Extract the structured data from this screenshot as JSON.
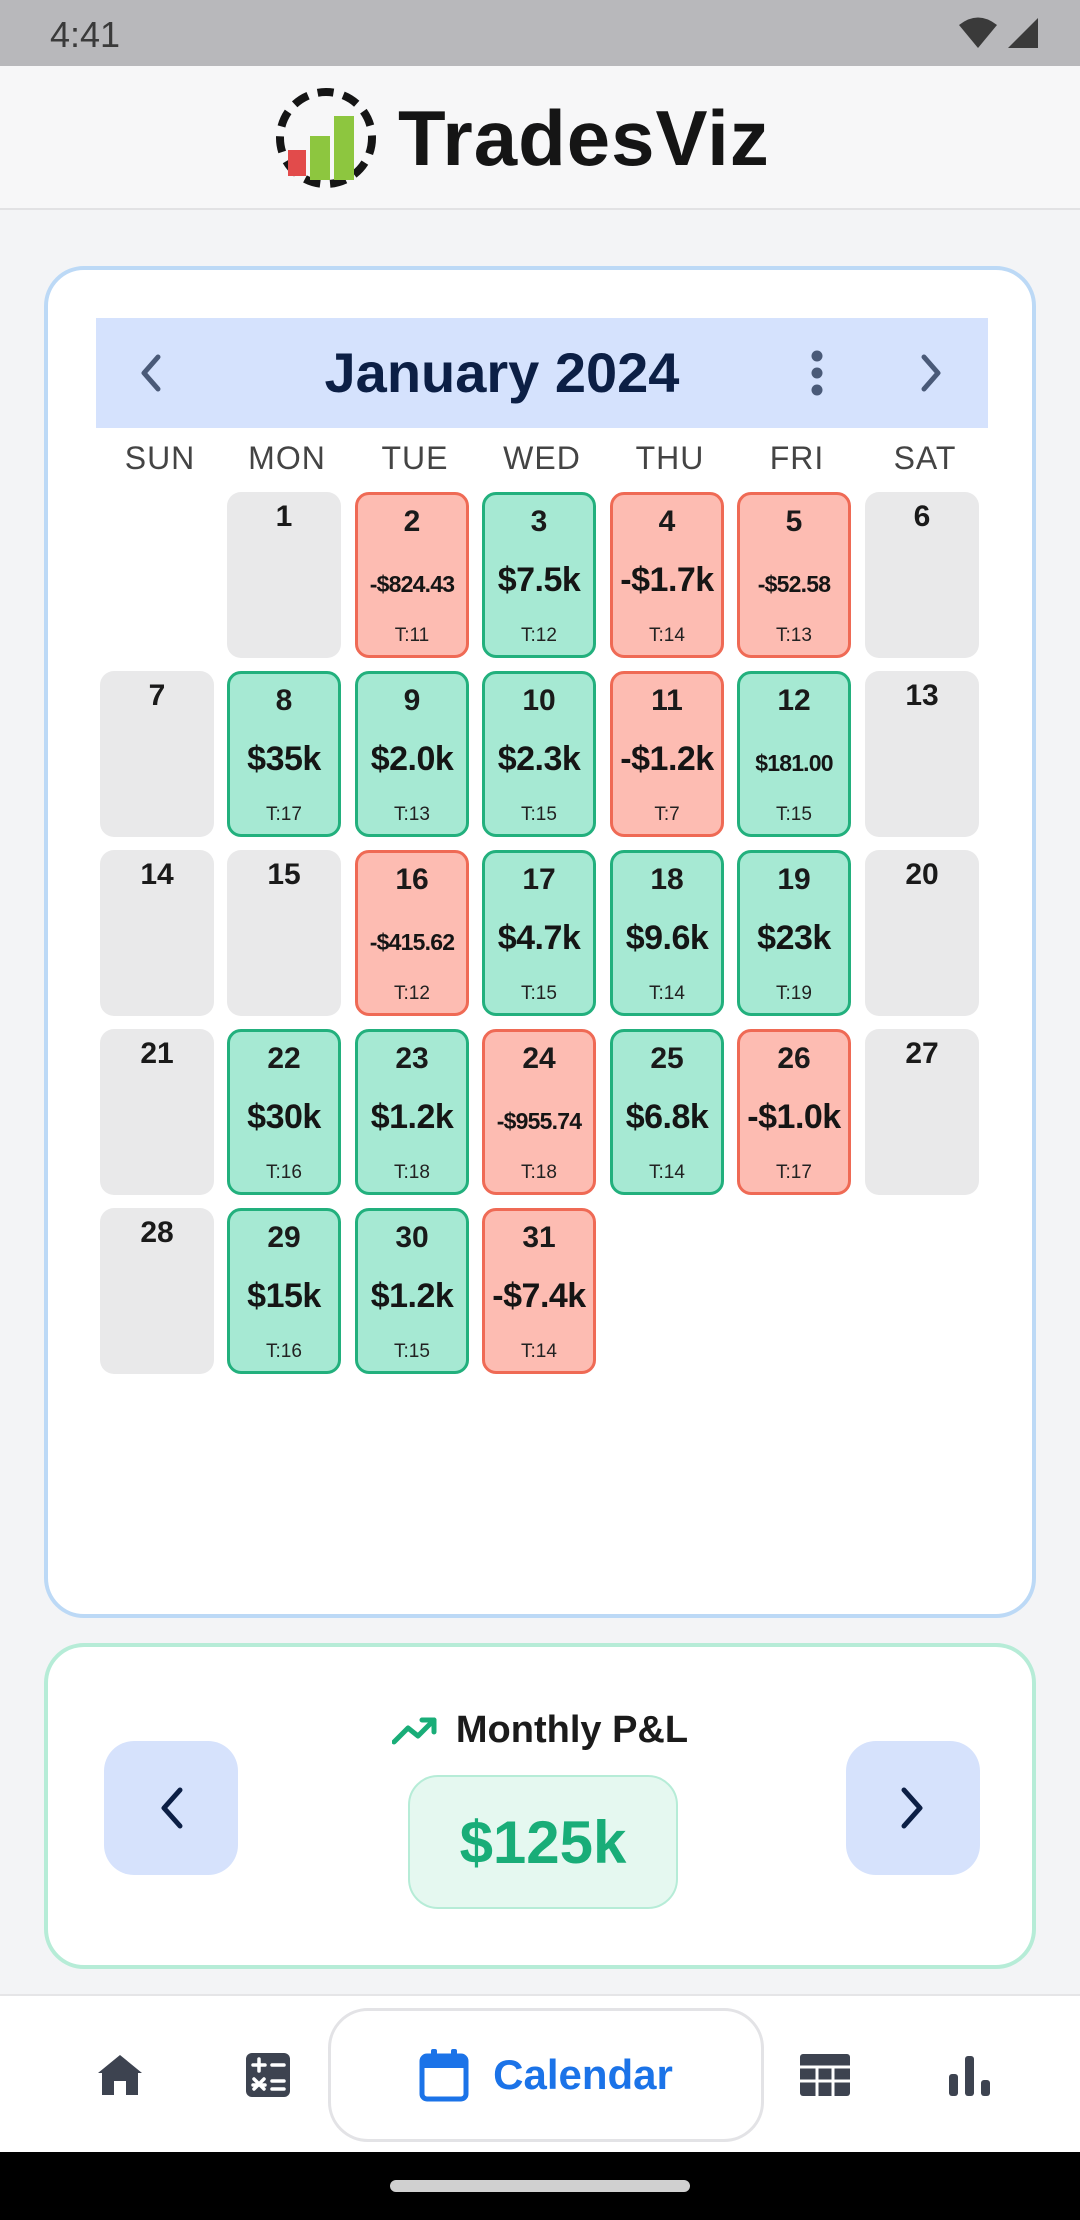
{
  "status_bar": {
    "time": "4:41"
  },
  "header": {
    "app_name": "TradesViz"
  },
  "calendar": {
    "title": "January 2024",
    "weekdays": [
      "SUN",
      "MON",
      "TUE",
      "WED",
      "THU",
      "FRI",
      "SAT"
    ],
    "days": [
      {
        "day": "1",
        "type": "empty"
      },
      {
        "day": "2",
        "type": "neg",
        "pnl": "-$824.43",
        "trades": "T:11"
      },
      {
        "day": "3",
        "type": "pos",
        "pnl": "$7.5k",
        "trades": "T:12"
      },
      {
        "day": "4",
        "type": "neg",
        "pnl": "-$1.7k",
        "trades": "T:14"
      },
      {
        "day": "5",
        "type": "neg",
        "pnl": "-$52.58",
        "trades": "T:13"
      },
      {
        "day": "6",
        "type": "empty"
      },
      {
        "day": "7",
        "type": "empty"
      },
      {
        "day": "8",
        "type": "pos",
        "pnl": "$35k",
        "trades": "T:17"
      },
      {
        "day": "9",
        "type": "pos",
        "pnl": "$2.0k",
        "trades": "T:13"
      },
      {
        "day": "10",
        "type": "pos",
        "pnl": "$2.3k",
        "trades": "T:15"
      },
      {
        "day": "11",
        "type": "neg",
        "pnl": "-$1.2k",
        "trades": "T:7"
      },
      {
        "day": "12",
        "type": "pos",
        "pnl": "$181.00",
        "trades": "T:15"
      },
      {
        "day": "13",
        "type": "empty"
      },
      {
        "day": "14",
        "type": "empty"
      },
      {
        "day": "15",
        "type": "empty"
      },
      {
        "day": "16",
        "type": "neg",
        "pnl": "-$415.62",
        "trades": "T:12"
      },
      {
        "day": "17",
        "type": "pos",
        "pnl": "$4.7k",
        "trades": "T:15"
      },
      {
        "day": "18",
        "type": "pos",
        "pnl": "$9.6k",
        "trades": "T:14"
      },
      {
        "day": "19",
        "type": "pos",
        "pnl": "$23k",
        "trades": "T:19"
      },
      {
        "day": "20",
        "type": "empty"
      },
      {
        "day": "21",
        "type": "empty"
      },
      {
        "day": "22",
        "type": "pos",
        "pnl": "$30k",
        "trades": "T:16"
      },
      {
        "day": "23",
        "type": "pos",
        "pnl": "$1.2k",
        "trades": "T:18"
      },
      {
        "day": "24",
        "type": "neg",
        "pnl": "-$955.74",
        "trades": "T:18"
      },
      {
        "day": "25",
        "type": "pos",
        "pnl": "$6.8k",
        "trades": "T:14"
      },
      {
        "day": "26",
        "type": "neg",
        "pnl": "-$1.0k",
        "trades": "T:17"
      },
      {
        "day": "27",
        "type": "empty"
      },
      {
        "day": "28",
        "type": "empty"
      },
      {
        "day": "29",
        "type": "pos",
        "pnl": "$15k",
        "trades": "T:16"
      },
      {
        "day": "30",
        "type": "pos",
        "pnl": "$1.2k",
        "trades": "T:15"
      },
      {
        "day": "31",
        "type": "neg",
        "pnl": "-$7.4k",
        "trades": "T:14"
      }
    ],
    "first_weekday_index": 1
  },
  "monthly": {
    "title": "Monthly P&L",
    "value": "$125k"
  },
  "bottom_nav": {
    "items": [
      "home-icon",
      "calculator-icon",
      "calendar-icon",
      "table-icon",
      "bar-chart-icon"
    ],
    "active_label": "Calendar"
  },
  "colors": {
    "positive_bg": "#a6e9d3",
    "positive_border": "#22b07d",
    "negative_bg": "#fdbcb2",
    "negative_border": "#ef6a55",
    "accent_blue": "#1b73e8",
    "header_bg": "#d5e2fd",
    "pnl_green": "#19ad78"
  }
}
